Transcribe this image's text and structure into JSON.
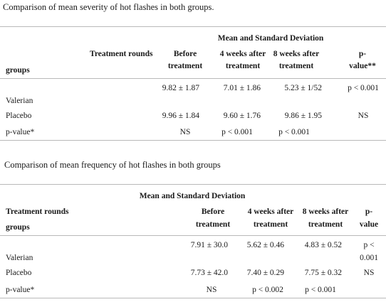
{
  "table1": {
    "caption": "Comparison of mean severity of hot flashes in both groups.",
    "span_header": "Mean and Standard Deviation",
    "header_treatment_rounds": "Treatment rounds",
    "header_groups": "groups",
    "col_before": [
      "Before",
      "treatment"
    ],
    "col_4w": [
      "4 weeks after",
      "treatment"
    ],
    "col_8w": [
      "8 weeks after",
      "treatment"
    ],
    "col_p": [
      "p-",
      "value**"
    ],
    "row_valerian": {
      "label": "Valerian",
      "before": "9.82 ± 1.87",
      "w4": "7.01 ± 1.86",
      "w8": "5.23 ± 1/52",
      "p": "p < 0.001"
    },
    "row_placebo": {
      "label": "Placebo",
      "before": "9.96 ± 1.84",
      "w4": "9.60 ± 1.76",
      "w8": "9.86 ± 1.95",
      "p": "NS"
    },
    "row_pvalue": {
      "label": "p-value*",
      "before": "NS",
      "w4": "p < 0.001",
      "w8": "p < 0.001"
    }
  },
  "table2": {
    "caption": "Comparison of mean frequency of hot flashes in both groups",
    "span_header": "Mean and Standard Deviation",
    "header_treatment_rounds": "Treatment rounds",
    "header_groups": "groups",
    "col_before": [
      "Before",
      "treatment"
    ],
    "col_4w": [
      "4 weeks after",
      "treatment"
    ],
    "col_8w": [
      "8 weeks after",
      "treatment"
    ],
    "col_p": [
      "p-",
      "value"
    ],
    "row_valerian": {
      "label": "Valerian",
      "before": "7.91 ± 30.0",
      "w4": "5.62 ± 0.46",
      "w8": "4.83 ± 0.52",
      "p": [
        "p <",
        "0.001"
      ]
    },
    "row_placebo": {
      "label": "Placebo",
      "before": "7.73 ± 42.0",
      "w4": "7.40 ± 0.29",
      "w8": "7.75 ± 0.32",
      "p": "NS"
    },
    "row_pvalue": {
      "label": "p-value*",
      "before": "NS",
      "w4": "p < 0.002",
      "w8": "p < 0.001"
    }
  }
}
